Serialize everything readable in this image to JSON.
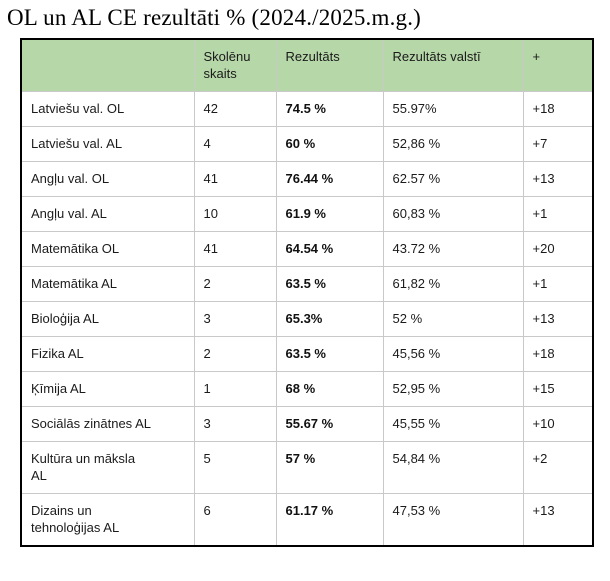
{
  "page": {
    "title": "OL un AL CE rezultāti % (2024./2025.m.g.)"
  },
  "colors": {
    "header_bg": "#b6d7a8",
    "inner_border": "#c9c9c9",
    "outer_border": "#000000",
    "body_text": "#1b1b1b",
    "title_text": "#000000"
  },
  "table": {
    "column_headers": [
      "",
      "Skolēnu skaits",
      "Rezultāts",
      "Rezultāts valstī",
      "+"
    ],
    "rows": [
      [
        "Latviešu val. OL",
        "42",
        "74.5 %",
        "55.97%",
        "+18"
      ],
      [
        "Latviešu val. AL",
        "4",
        "60 %",
        "52,86 %",
        "+7"
      ],
      [
        "Angļu val. OL",
        "41",
        "76.44 %",
        "62.57 %",
        "+13"
      ],
      [
        "Angļu val. AL",
        "10",
        "61.9 %",
        "60,83 %",
        "+1"
      ],
      [
        "Matemātika OL",
        "41",
        "64.54 %",
        "43.72 %",
        "+20"
      ],
      [
        "Matemātika AL",
        "2",
        "63.5 %",
        "61,82 %",
        "+1"
      ],
      [
        "Bioloģija AL",
        "3",
        "65.3%",
        "52 %",
        "+13"
      ],
      [
        "Fizika AL",
        "2",
        "63.5 %",
        "45,56 %",
        "+18"
      ],
      [
        "Ķīmija AL",
        "1",
        "68 %",
        "52,95 %",
        "+15"
      ],
      [
        "Sociālās zinātnes AL",
        "3",
        "55.67 %",
        "45,55 %",
        "+10"
      ],
      [
        "Kultūra un māksla\nAL",
        "5",
        "57 %",
        "54,84 %",
        "+2"
      ],
      [
        "Dizains un\ntehnoloģijas AL",
        "6",
        "61.17 %",
        "47,53 %",
        "+13"
      ]
    ]
  }
}
